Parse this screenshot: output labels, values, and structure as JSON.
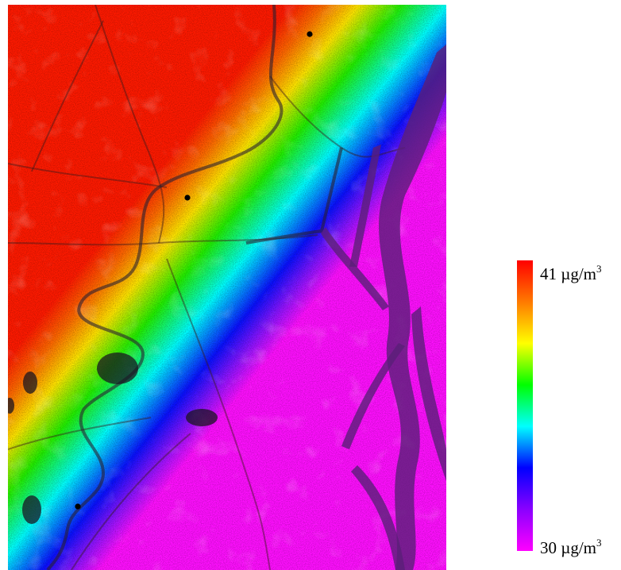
{
  "legend": {
    "max_value": "41",
    "min_value": "30",
    "unit_base": "µg/m",
    "unit_exponent": "3",
    "colors": [
      "#ff0000",
      "#ff7a00",
      "#ffff00",
      "#00ff00",
      "#00ffff",
      "#0000ff",
      "#8a00ff",
      "#ff00ff"
    ]
  },
  "map": {
    "gradient_direction": "decreasing from upper-left to lower-right",
    "markers": [
      {
        "label": "",
        "x": 0.69,
        "y": 0.05
      },
      {
        "label": "",
        "x": 0.41,
        "y": 0.34
      },
      {
        "label": "",
        "x": 0.16,
        "y": 0.89
      }
    ]
  }
}
